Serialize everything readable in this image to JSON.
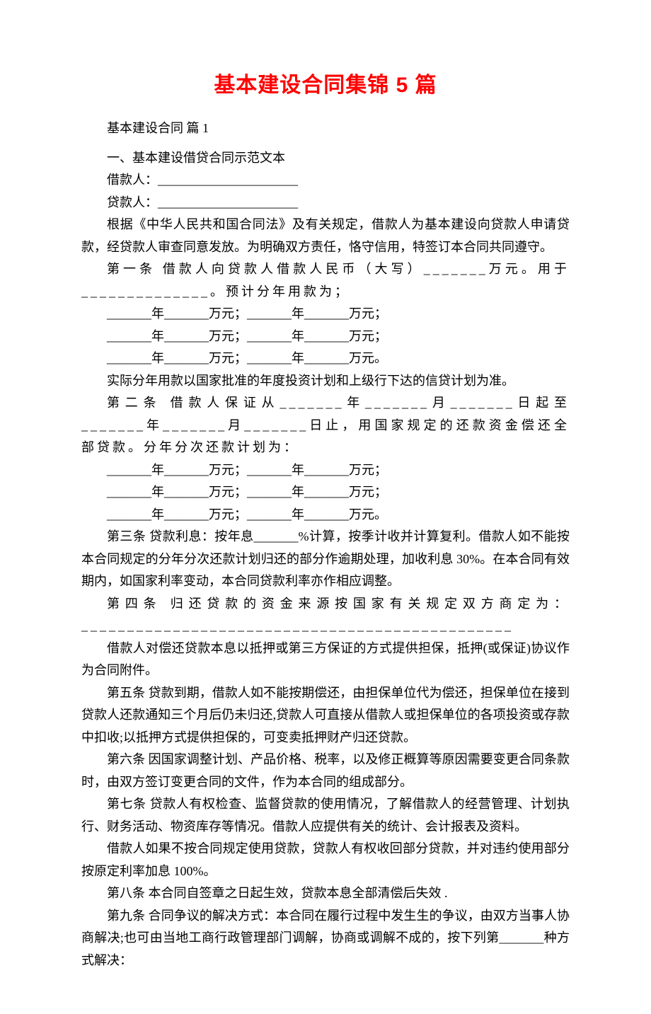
{
  "title": "基本建设合同集锦 5 篇",
  "subtitle": "基本建设合同 篇 1",
  "section1_heading": "一、基本建设借贷合同示范文本",
  "borrower_label": "借款人：______________________",
  "lender_label": "贷款人：______________________",
  "preamble": "根据《中华人民共和国合同法》及有关规定，借款人为基本建设向贷款人申请贷款，经贷款人审查同意发放。为明确双方责任，恪守信用，特签订本合同共同遵守。",
  "article1_part1": "第一条  借款人向贷款人借款人民币（大写）_______万元。用于______________。预计分年用款为；",
  "year_lines_a1": "_______年_______万元；_______年_______万元；",
  "year_lines_a2": "_______年_______万元；_______年_______万元；",
  "year_lines_a3": "_______年_______万元；_______年_______万元。",
  "article1_note": "实际分年用款以国家批准的年度投资计划和上级行下达的信贷计划为准。",
  "article2": "第二条  借款人保证从_______年_______月_______日起至_______年_______月_______日止，用国家规定的还款资金偿还全部贷款。分年分次还款计划为：",
  "year_lines_b1": "_______年_______万元；_______年_______万元；",
  "year_lines_b2": "_______年_______万元；_______年_______万元；",
  "year_lines_b3": "_______年_______万元；_______年_______万元。",
  "article3": "第三条 贷款利息：按年息_______%计算，按季计收并计算复利。借款人如不能按本合同规定的分年分次还款计划归还的部分作逾期处理，加收利息 30%。在本合同有效期内，如国家利率变动，本合同贷款利率亦作相应调整。",
  "article4": "第四条  归还贷款的资金来源按国家有关规定双方商定为：_______________________________________________",
  "article4_note": "借款人对偿还贷款本息以抵押或第三方保证的方式提供担保，抵押(或保证)协议作为合同附件。",
  "article5": "第五条 贷款到期，借款人如不能按期偿还，由担保单位代为偿还，担保单位在接到贷款人还款通知三个月后仍未归还,贷款人可直接从借款人或担保单位的各项投资或存款中扣收;以抵押方式提供担保的，可变卖抵押财产归还贷款。",
  "article6": "第六条 因国家调整计划、产品价格、税率，以及修正概算等原因需要变更合同条款时，由双方签订变更合同的文件，作为本合同的组成部分。",
  "article7": "第七条 贷款人有权检查、监督贷款的使用情况，了解借款人的经营管理、计划执行、财务活动、物资库存等情况。借款人应提供有关的统计、会计报表及资料。",
  "article7_note": "借款人如果不按合同规定使用贷款，贷款人有权收回部分贷款，并对违约使用部分按原定利率加息 100%。",
  "article8": "第八条 本合同自签章之日起生效，贷款本息全部清偿后失效 .",
  "article9": "第九条 合同争议的解决方式：本合同在履行过程中发生生的争议，由双方当事人协商解决;也可由当地工商行政管理部门调解，协商或调解不成的，按下列第_______种方式解决："
}
